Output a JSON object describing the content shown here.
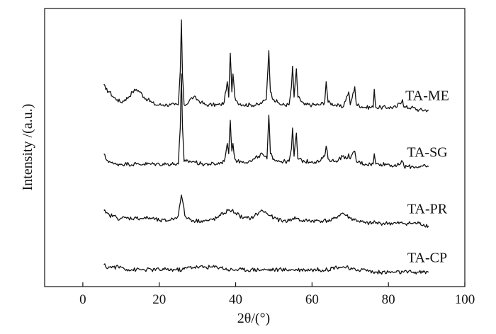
{
  "chart_data": {
    "type": "line",
    "xlabel": "2θ/(°)",
    "ylabel": "Intensity /(a.u.)",
    "xlim": [
      -10,
      100
    ],
    "ylim": [
      0,
      100
    ],
    "xticks": [
      0,
      20,
      40,
      60,
      80,
      100
    ],
    "grid": false,
    "legend": "labels at right end of each trace",
    "series": [
      {
        "name": "TA-ME",
        "offset": 65,
        "points": [
          [
            5.5,
            75
          ],
          [
            6,
            73
          ],
          [
            7,
            72
          ],
          [
            8,
            70
          ],
          [
            9,
            69
          ],
          [
            10,
            68
          ],
          [
            11,
            69
          ],
          [
            12,
            70
          ],
          [
            13,
            72
          ],
          [
            14,
            73
          ],
          [
            15,
            72
          ],
          [
            16,
            70
          ],
          [
            17,
            69
          ],
          [
            18,
            68
          ],
          [
            19,
            67
          ],
          [
            20,
            67
          ],
          [
            21,
            67
          ],
          [
            22,
            67
          ],
          [
            23,
            67
          ],
          [
            24,
            67
          ],
          [
            25,
            67
          ],
          [
            25.5,
            80
          ],
          [
            25.8,
            100
          ],
          [
            26.1,
            78
          ],
          [
            26.5,
            67
          ],
          [
            27,
            67
          ],
          [
            28,
            69
          ],
          [
            29,
            70
          ],
          [
            30,
            69
          ],
          [
            31,
            68
          ],
          [
            32,
            67
          ],
          [
            33,
            67
          ],
          [
            34,
            67
          ],
          [
            35,
            67
          ],
          [
            36,
            67
          ],
          [
            37,
            68
          ],
          [
            37.8,
            76
          ],
          [
            38.2,
            70
          ],
          [
            38.6,
            87
          ],
          [
            39,
            72
          ],
          [
            39.3,
            79
          ],
          [
            39.8,
            70
          ],
          [
            40.5,
            68
          ],
          [
            42,
            67
          ],
          [
            44,
            67
          ],
          [
            46,
            67
          ],
          [
            47,
            68
          ],
          [
            48,
            69
          ],
          [
            48.7,
            88
          ],
          [
            49.1,
            72
          ],
          [
            50,
            69
          ],
          [
            51,
            68
          ],
          [
            52,
            67
          ],
          [
            54,
            67
          ],
          [
            54.6,
            74
          ],
          [
            54.9,
            82
          ],
          [
            55.3,
            70
          ],
          [
            55.9,
            81
          ],
          [
            56.3,
            70
          ],
          [
            58,
            67
          ],
          [
            60,
            67
          ],
          [
            62,
            67
          ],
          [
            63.3,
            68
          ],
          [
            63.7,
            76
          ],
          [
            64.2,
            68
          ],
          [
            66,
            67
          ],
          [
            68,
            66
          ],
          [
            69.6,
            72
          ],
          [
            70,
            67
          ],
          [
            71.2,
            74
          ],
          [
            71.6,
            67
          ],
          [
            74,
            66
          ],
          [
            76,
            66
          ],
          [
            76.3,
            73
          ],
          [
            76.7,
            66
          ],
          [
            78,
            66
          ],
          [
            80,
            66
          ],
          [
            82,
            66
          ],
          [
            83.7,
            69
          ],
          [
            84.1,
            66
          ],
          [
            86,
            66
          ],
          [
            88,
            65
          ],
          [
            90.5,
            65
          ]
        ]
      },
      {
        "name": "TA-SG",
        "offset": 43,
        "points": [
          [
            5.5,
            48
          ],
          [
            6,
            46
          ],
          [
            7,
            45
          ],
          [
            8,
            44
          ],
          [
            9,
            44
          ],
          [
            10,
            44
          ],
          [
            11,
            44
          ],
          [
            12,
            44
          ],
          [
            14,
            44
          ],
          [
            16,
            44
          ],
          [
            18,
            44
          ],
          [
            20,
            44
          ],
          [
            22,
            44
          ],
          [
            24,
            44
          ],
          [
            25,
            44
          ],
          [
            25.5,
            58
          ],
          [
            25.8,
            79
          ],
          [
            26.1,
            58
          ],
          [
            26.5,
            45
          ],
          [
            27,
            45
          ],
          [
            29,
            45
          ],
          [
            31,
            44
          ],
          [
            33,
            44
          ],
          [
            35,
            44
          ],
          [
            37,
            45
          ],
          [
            37.8,
            52
          ],
          [
            38.2,
            48
          ],
          [
            38.6,
            61
          ],
          [
            39,
            49
          ],
          [
            39.3,
            52
          ],
          [
            39.8,
            46
          ],
          [
            40.5,
            45
          ],
          [
            42,
            45
          ],
          [
            44,
            45
          ],
          [
            45,
            46
          ],
          [
            46,
            47
          ],
          [
            47,
            48
          ],
          [
            47.5,
            47
          ],
          [
            48.2,
            46
          ],
          [
            48.7,
            63
          ],
          [
            49.1,
            48
          ],
          [
            50,
            46
          ],
          [
            52,
            45
          ],
          [
            54,
            45
          ],
          [
            54.6,
            50
          ],
          [
            54.9,
            58
          ],
          [
            55.3,
            47
          ],
          [
            55.9,
            56
          ],
          [
            56.3,
            46
          ],
          [
            58,
            45
          ],
          [
            60,
            45
          ],
          [
            62,
            45
          ],
          [
            63.3,
            47
          ],
          [
            63.7,
            51
          ],
          [
            64.2,
            46
          ],
          [
            66,
            45
          ],
          [
            67,
            46
          ],
          [
            68,
            47
          ],
          [
            69,
            46
          ],
          [
            69.6,
            48
          ],
          [
            70,
            46
          ],
          [
            71.2,
            49
          ],
          [
            71.6,
            45
          ],
          [
            74,
            44
          ],
          [
            76,
            44
          ],
          [
            76.3,
            48
          ],
          [
            76.7,
            44
          ],
          [
            78,
            44
          ],
          [
            80,
            44
          ],
          [
            82,
            43
          ],
          [
            83.7,
            45
          ],
          [
            84.1,
            43
          ],
          [
            86,
            43
          ],
          [
            88,
            43
          ],
          [
            90.5,
            43
          ]
        ]
      },
      {
        "name": "TA-PR",
        "offset": 21,
        "points": [
          [
            5.5,
            26
          ],
          [
            6,
            25
          ],
          [
            7,
            24
          ],
          [
            8,
            24
          ],
          [
            9,
            23
          ],
          [
            10,
            23
          ],
          [
            12,
            23
          ],
          [
            14,
            23
          ],
          [
            16,
            23
          ],
          [
            18,
            23
          ],
          [
            20,
            22
          ],
          [
            22,
            22
          ],
          [
            24,
            23
          ],
          [
            25,
            24
          ],
          [
            25.5,
            29
          ],
          [
            25.8,
            32
          ],
          [
            26.2,
            29
          ],
          [
            26.7,
            24
          ],
          [
            27.5,
            23
          ],
          [
            29,
            22
          ],
          [
            31,
            22
          ],
          [
            33,
            22
          ],
          [
            35,
            23
          ],
          [
            36,
            24
          ],
          [
            37,
            25
          ],
          [
            38,
            26
          ],
          [
            39,
            26
          ],
          [
            40,
            25
          ],
          [
            41,
            24
          ],
          [
            42,
            23
          ],
          [
            43,
            23
          ],
          [
            44,
            23
          ],
          [
            45,
            24
          ],
          [
            46,
            25
          ],
          [
            47,
            26
          ],
          [
            48,
            25
          ],
          [
            49,
            24
          ],
          [
            50,
            23
          ],
          [
            52,
            22
          ],
          [
            54,
            22
          ],
          [
            55,
            23
          ],
          [
            56,
            23
          ],
          [
            57,
            22
          ],
          [
            59,
            22
          ],
          [
            61,
            22
          ],
          [
            63,
            22
          ],
          [
            65,
            22
          ],
          [
            66,
            23
          ],
          [
            67,
            24
          ],
          [
            68,
            25
          ],
          [
            69,
            24
          ],
          [
            70,
            23
          ],
          [
            72,
            22
          ],
          [
            74,
            21
          ],
          [
            76,
            21
          ],
          [
            76.3,
            22
          ],
          [
            76.7,
            21
          ],
          [
            78,
            21
          ],
          [
            80,
            21
          ],
          [
            82,
            21
          ],
          [
            84,
            21
          ],
          [
            86,
            21
          ],
          [
            88,
            21
          ],
          [
            90.5,
            20
          ]
        ]
      },
      {
        "name": "TA-CP",
        "offset": 2,
        "points": [
          [
            5.5,
            5
          ],
          [
            6,
            4
          ],
          [
            7,
            4
          ],
          [
            8,
            4
          ],
          [
            10,
            4
          ],
          [
            12,
            3
          ],
          [
            14,
            3
          ],
          [
            16,
            3
          ],
          [
            18,
            3
          ],
          [
            20,
            3
          ],
          [
            22,
            3
          ],
          [
            24,
            3
          ],
          [
            26,
            3
          ],
          [
            28,
            4
          ],
          [
            30,
            4
          ],
          [
            32,
            4
          ],
          [
            34,
            4
          ],
          [
            36,
            4
          ],
          [
            38,
            3
          ],
          [
            40,
            3
          ],
          [
            42,
            3
          ],
          [
            44,
            3
          ],
          [
            46,
            3
          ],
          [
            48,
            3
          ],
          [
            50,
            3
          ],
          [
            52,
            3
          ],
          [
            54,
            3
          ],
          [
            56,
            3
          ],
          [
            58,
            3
          ],
          [
            60,
            3
          ],
          [
            62,
            3
          ],
          [
            64,
            3
          ],
          [
            66,
            4
          ],
          [
            67,
            4
          ],
          [
            68,
            4
          ],
          [
            69,
            4
          ],
          [
            70,
            3
          ],
          [
            72,
            3
          ],
          [
            74,
            3
          ],
          [
            76,
            2
          ],
          [
            78,
            2
          ],
          [
            80,
            2
          ],
          [
            82,
            2
          ],
          [
            84,
            2
          ],
          [
            86,
            2
          ],
          [
            88,
            2
          ],
          [
            90.5,
            2
          ]
        ]
      }
    ]
  }
}
